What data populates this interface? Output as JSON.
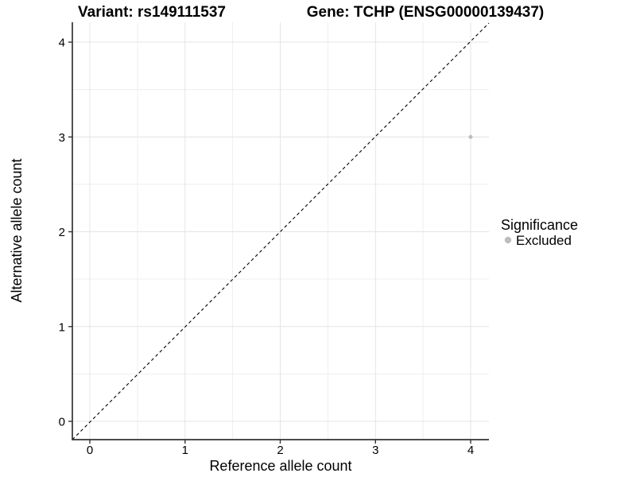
{
  "header": {
    "title_left": "Variant: rs149111537",
    "title_right": "Gene: TCHP (ENSG00000139437)"
  },
  "chart_data": {
    "type": "scatter",
    "title": "Variant: rs149111537 / Gene: TCHP (ENSG00000139437)",
    "xlabel": "Reference allele count",
    "ylabel": "Alternative allele count",
    "xlim": [
      -0.2,
      4.2
    ],
    "ylim": [
      -0.2,
      4.2
    ],
    "x_ticks": [
      0,
      1,
      2,
      3,
      4
    ],
    "y_ticks": [
      0,
      1,
      2,
      3,
      4
    ],
    "x_tick_labels": [
      "0",
      "1",
      "2",
      "3",
      "4"
    ],
    "y_tick_labels": [
      "0",
      "1",
      "2",
      "3",
      "4"
    ],
    "grid": "major and minor, light grey on white",
    "reference_line": {
      "type": "identity y=x",
      "style": "dashed",
      "color": "#000000"
    },
    "series": [
      {
        "name": "Excluded",
        "color": "#bebebe",
        "point_radius": 2.5,
        "points": [
          {
            "x": 4,
            "y": 3
          }
        ]
      }
    ],
    "legend": {
      "title": "Significance",
      "position": "right",
      "items": [
        {
          "label": "Excluded",
          "color": "#bebebe"
        }
      ]
    }
  },
  "colors": {
    "background": "#ffffff",
    "grid_major": "#e4e4e4",
    "grid_minor": "#efefef",
    "axis_line": "#333333",
    "point": "#bebebe",
    "text": "#000000"
  }
}
